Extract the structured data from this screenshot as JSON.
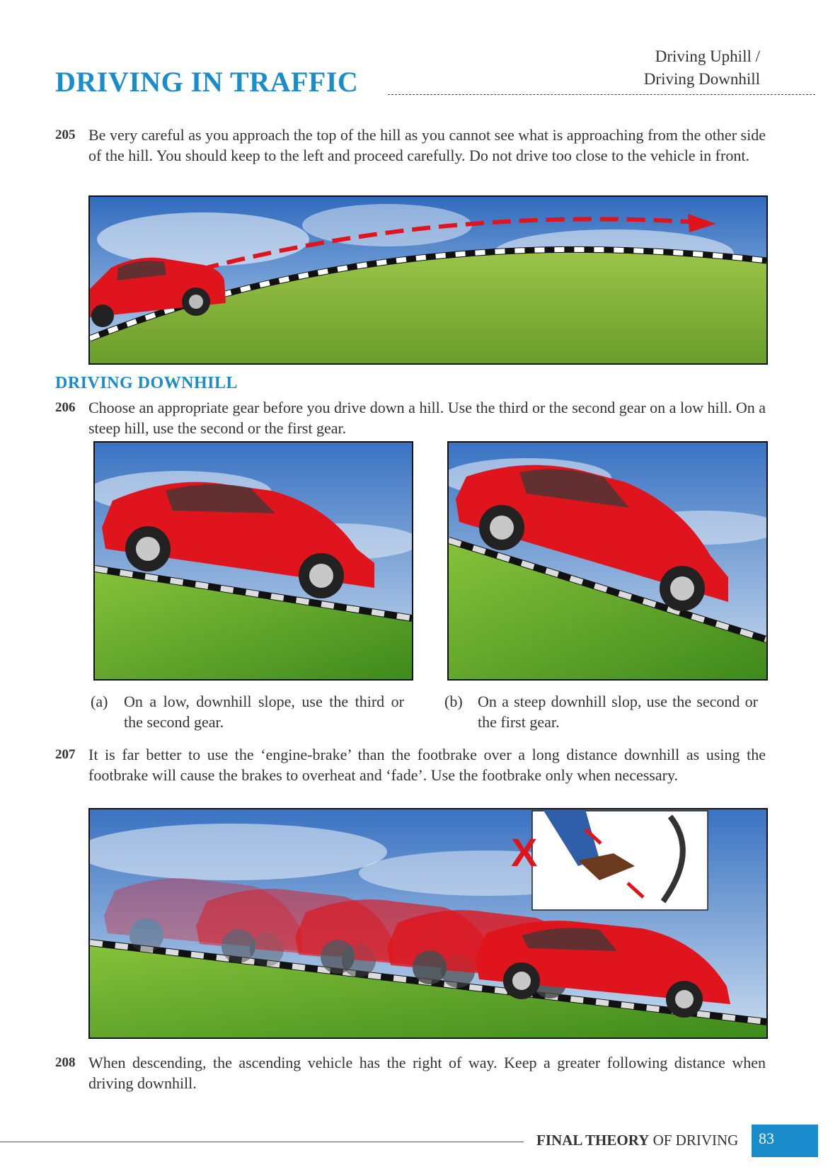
{
  "header": {
    "chapter_title": "DRIVING IN TRAFFIC",
    "section_line1": "Driving Uphill /",
    "section_line2": "Driving Downhill"
  },
  "paragraphs": {
    "p205": {
      "number": "205",
      "text": "Be very careful as you approach the top of the hill as you cannot see what is approaching from the other side of the hill. You should keep to the left and proceed carefully. Do not drive too close to the vehicle in front."
    },
    "p206": {
      "number": "206",
      "text": "Choose an appropriate gear before you drive down a hill. Use the third or the second gear on a low hill. On a steep hill, use the second or the first gear."
    },
    "p207": {
      "number": "207",
      "text": "It is far better to use the ‘engine-brake’ than the footbrake over a long distance downhill as using the footbrake will cause the brakes to overheat and ‘fade’. Use the footbrake only when necessary."
    },
    "p208": {
      "number": "208",
      "text": "When descending, the ascending vehicle has the right of way. Keep a greater following distance when driving downhill."
    }
  },
  "subheading": "DRIVING  DOWNHILL",
  "captions": {
    "a": {
      "label": "(a)",
      "text": "On a low, downhill slope, use the third or the second gear."
    },
    "b": {
      "label": "(b)",
      "text": "On a steep downhill slop, use the second or the first gear."
    }
  },
  "figure_mark": "X",
  "footer": {
    "brand_bold": "FINAL THEORY",
    "brand_rest": " OF DRIVING",
    "page_number": "83"
  },
  "colors": {
    "accent": "#1a8ccc",
    "car_red": "#e0141c",
    "grass": "#7fb82e",
    "sky": "#3f78c4"
  }
}
